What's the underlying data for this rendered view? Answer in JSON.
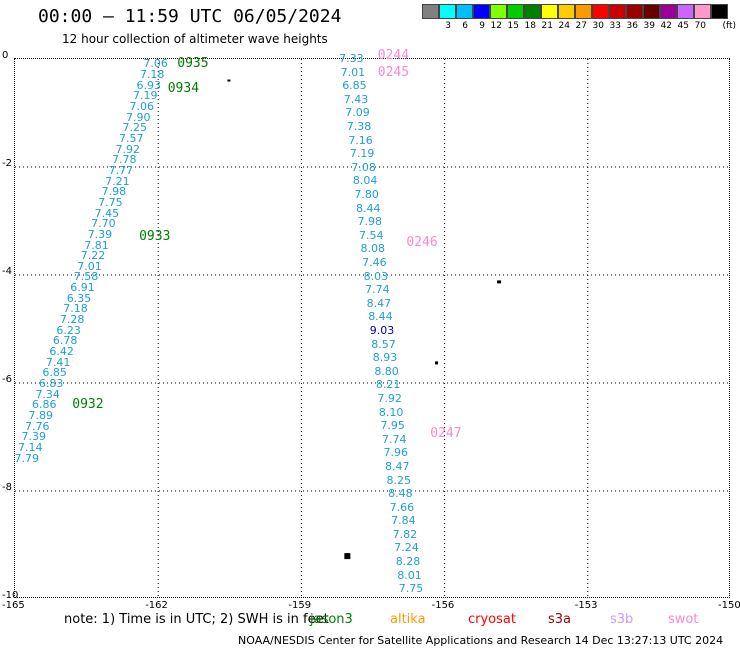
{
  "title": "00:00 – 11:59 UTC 06/05/2024",
  "subtitle": "12 hour collection of altimeter wave heights",
  "colorbar": {
    "unit": "(ft)",
    "colors": [
      "#808080",
      "#00ffff",
      "#00bfff",
      "#0000ff",
      "#7fff00",
      "#00cc00",
      "#008000",
      "#ffff00",
      "#ffcc00",
      "#ff9900",
      "#ff0000",
      "#cc0000",
      "#990000",
      "#660000",
      "#990099",
      "#cc66ff",
      "#ff99cc",
      "#000000"
    ],
    "labels": [
      "3",
      "6",
      "9",
      "12",
      "15",
      "18",
      "21",
      "24",
      "27",
      "30",
      "33",
      "36",
      "39",
      "42",
      "45",
      "70"
    ]
  },
  "axes": {
    "x_ticks": [
      "-165",
      "-162",
      "-159",
      "-156",
      "-153",
      "-150"
    ],
    "y_ticks": [
      "0",
      "-2",
      "-4",
      "-6",
      "-8",
      "-10"
    ],
    "xlim": [
      -165,
      -150
    ],
    "ylim": [
      -10,
      0
    ]
  },
  "track_west": {
    "color": "#1e9ed6",
    "values": [
      "7.06",
      "7.18",
      "6.93",
      "7.19",
      "7.06",
      "7.90",
      "7.25",
      "7.57",
      "7.92",
      "7.78",
      "7.77",
      "7.21",
      "7.98",
      "7.75",
      "7.45",
      "7.70",
      "7.39",
      "7.81",
      "7.22",
      "7.01",
      "7.58",
      "6.91",
      "6.35",
      "7.18",
      "7.28",
      "6.23",
      "6.78",
      "6.42",
      "7.41",
      "6.85",
      "6.83",
      "7.34",
      "6.86",
      "7.89",
      "7.76",
      "7.39",
      "7.14",
      "7.79"
    ],
    "lon_start": -162.1,
    "lon_end": -164.8,
    "lat_start": -0.1,
    "lat_end": -7.4
  },
  "track_east": {
    "color": "#1e9ed6",
    "values": [
      "7.33",
      "7.01",
      "6.85",
      "7.43",
      "7.09",
      "7.38",
      "7.16",
      "7.19",
      "7.08",
      "8.04",
      "7.80",
      "8.44",
      "7.98",
      "7.54",
      "8.08",
      "7.46",
      "8.03",
      "7.74",
      "8.47",
      "8.44",
      "9.03",
      "8.57",
      "8.93",
      "8.80",
      "8.21",
      "7.92",
      "8.10",
      "7.95",
      "7.74",
      "7.96",
      "8.47",
      "8.25",
      "8.48",
      "7.66",
      "7.84",
      "7.82",
      "7.24",
      "8.28",
      "8.01",
      "7.75"
    ],
    "highlight_value": "9.03",
    "highlight_color": "#0000cc",
    "lon_start": -158.0,
    "lon_end": -156.75,
    "lat_start": 0.0,
    "lat_end": -9.82
  },
  "time_labels": [
    {
      "text": "0935",
      "color": "#008000",
      "lon": -161.6,
      "lat": -0.1
    },
    {
      "text": "0934",
      "color": "#008000",
      "lon": -161.8,
      "lat": -0.55
    },
    {
      "text": "0933",
      "color": "#008000",
      "lon": -162.4,
      "lat": -3.3
    },
    {
      "text": "0932",
      "color": "#008000",
      "lon": -163.8,
      "lat": -6.4
    },
    {
      "text": "0244",
      "color": "#ff88cc",
      "lon": -157.4,
      "lat": 0.05
    },
    {
      "text": "0245",
      "color": "#ff88cc",
      "lon": -157.4,
      "lat": -0.25
    },
    {
      "text": "0246",
      "color": "#ff88cc",
      "lon": -156.8,
      "lat": -3.4
    },
    {
      "text": "0247",
      "color": "#ff88cc",
      "lon": -156.3,
      "lat": -6.95
    }
  ],
  "note": "note:  1) Time is in UTC; 2) SWH is in feet",
  "legend": [
    {
      "name": "jason3",
      "color": "#008000"
    },
    {
      "name": "altika",
      "color": "#ff9900"
    },
    {
      "name": "cryosat",
      "color": "#ff0000"
    },
    {
      "name": "s3a",
      "color": "#990000"
    },
    {
      "name": "s3b",
      "color": "#cc99ff"
    },
    {
      "name": "swot",
      "color": "#ff88cc"
    }
  ],
  "footer": "NOAA/NESDIS Center for Satellite Applications and Research    14 Dec 13:27:13 UTC 2024"
}
